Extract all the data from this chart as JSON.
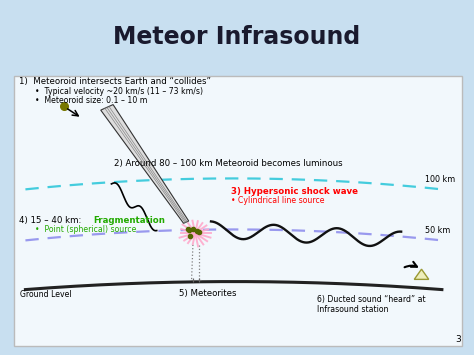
{
  "title": "Meteor Infrasound",
  "title_color": "#1a1a2e",
  "header_bg": "#6b9fd4",
  "slide_bg": "#c8dff0",
  "content_bg": "#f2f8fc",
  "text1_line1": "1)  Meteoroid intersects Earth and “collides”",
  "text1_line2": "    •  Typical velocity ~20 km/s (11 – 73 km/s)",
  "text1_line3": "    •  Meteoroid size: 0.1 – 10 m",
  "text2": "2) Around 80 – 100 km Meteoroid becomes luminous",
  "text3a": "3) Hypersonic shock wave",
  "text3b": "• Cylindrical line source",
  "text4a_black": "4) 15 – 40 km: ",
  "text4a_green": "Fragmentation",
  "text4b": "    •  Point (spherical) source",
  "text5": "5) Meteorites",
  "text6": "6) Ducted sound “heard” at\nInfrasound station",
  "label_100km": "100 km",
  "label_50km": "50 km",
  "label_ground": "Ground Level",
  "label_page": "3",
  "arc_100_color": "#44ccdd",
  "arc_50_color": "#9999ee",
  "ground_color": "#222222",
  "meteor_fill": "#dddddd",
  "meteor_edge": "#555555",
  "burst_ray_color": "#ffaacc",
  "burst_dot_color": "#556600",
  "wave_color": "#111111",
  "triangle_fill": "#eeeebb",
  "triangle_edge": "#999933"
}
